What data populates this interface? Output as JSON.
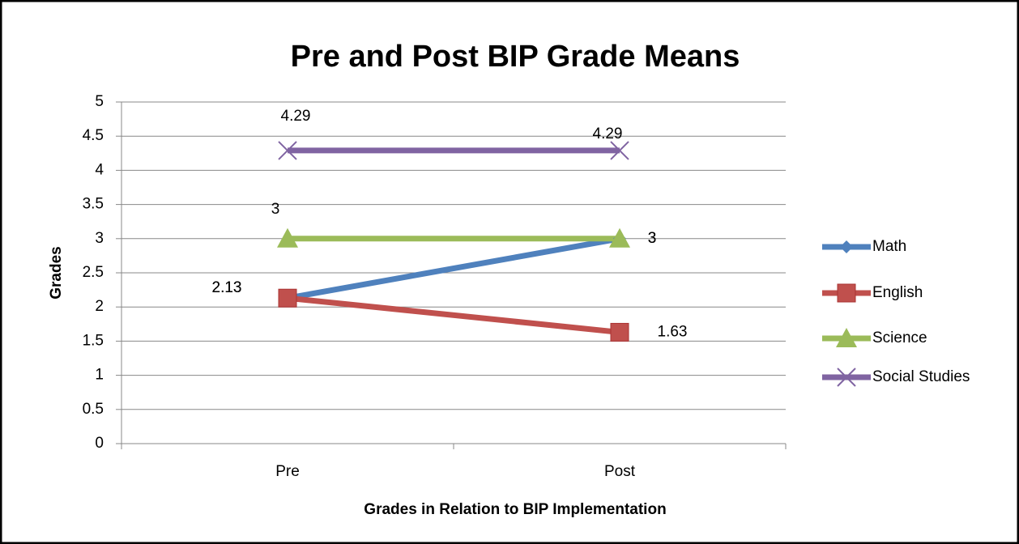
{
  "chart_data": {
    "type": "line",
    "title": "Pre and Post BIP Grade Means",
    "x_label": "Grades in Relation to BIP Implementation",
    "y_label": "Grades",
    "categories": [
      "Pre",
      "Post"
    ],
    "series": [
      {
        "name": "Math",
        "color": "#4f81bd",
        "marker": "diamond",
        "values": [
          2.13,
          3
        ]
      },
      {
        "name": "English",
        "color": "#c0504d",
        "marker": "square",
        "values": [
          2.13,
          1.63
        ]
      },
      {
        "name": "Science",
        "color": "#9bbb59",
        "marker": "triangle",
        "values": [
          3,
          3
        ]
      },
      {
        "name": "Social Studies",
        "color": "#8064a2",
        "marker": "x",
        "values": [
          4.29,
          4.29
        ]
      }
    ],
    "ylim": [
      0,
      5
    ],
    "yticks": [
      0,
      0.5,
      1,
      1.5,
      2,
      2.5,
      3,
      3.5,
      4,
      4.5,
      5
    ],
    "grid": true,
    "legend": "right"
  }
}
